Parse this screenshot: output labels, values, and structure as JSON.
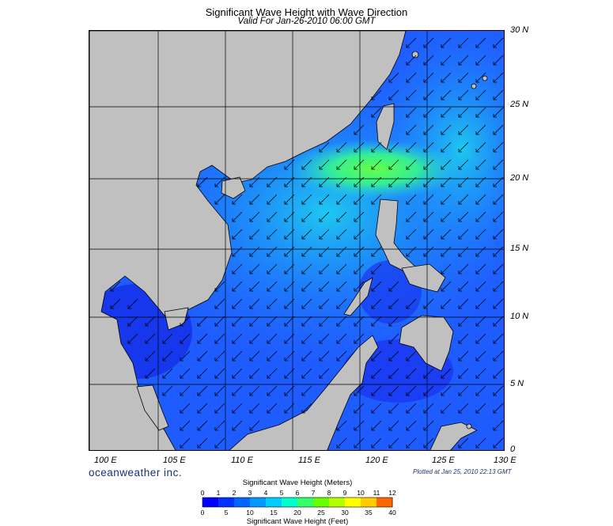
{
  "title": "Significant Wave Height with Wave Direction",
  "subtitle": "Valid For Jan-26-2010 06:00 GMT",
  "latitude_labels": [
    "30 N",
    "25 N",
    "20 N",
    "15 N",
    "10 N",
    "5 N",
    "0"
  ],
  "longitude_labels": [
    "100 E",
    "105 E",
    "110 E",
    "115 E",
    "120 E",
    "125 E",
    "130 E"
  ],
  "logo_text": "oceanweather inc.",
  "plotted_text": "Plotted at Jan 25, 2010 22:13 GMT",
  "colorbar": {
    "title_meters": "Significant Wave Height (Meters)",
    "title_feet": "Significant Wave Height (Feet)",
    "meter_ticks": [
      "0",
      "1",
      "2",
      "3",
      "4",
      "5",
      "6",
      "7",
      "8",
      "9",
      "10",
      "11",
      "12"
    ],
    "feet_ticks": [
      "0",
      "5",
      "10",
      "15",
      "20",
      "25",
      "30",
      "35",
      "40"
    ],
    "colors": [
      "#0000ff",
      "#0033ff",
      "#0066ff",
      "#0099ff",
      "#00ccff",
      "#00ffcc",
      "#33ff66",
      "#66ff00",
      "#b3ff00",
      "#ffff00",
      "#ffcc00",
      "#ff6600",
      "#ff0000"
    ]
  },
  "map": {
    "land_color": "#c0c0c0",
    "ocean_low_color": "#1a3cff",
    "ocean_mid_color": "#1f8fff",
    "ocean_high_color": "#22ddcc",
    "peak_color": "#55ff55",
    "arrow_direction": "southwest"
  }
}
